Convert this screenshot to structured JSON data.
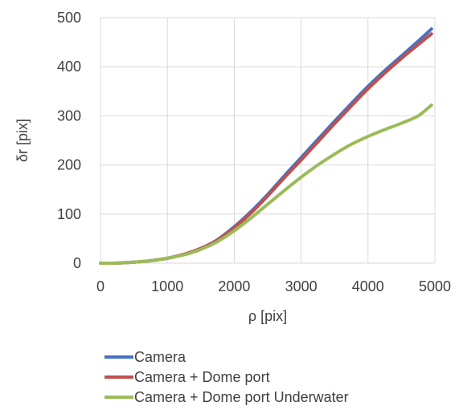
{
  "chart_data": {
    "type": "line",
    "title": "",
    "xlabel": "ρ [pix]",
    "ylabel": "δr  [pix]",
    "xlim": [
      0,
      5000
    ],
    "ylim": [
      0,
      500
    ],
    "x_ticks": [
      "0",
      "1000",
      "2000",
      "3000",
      "4000",
      "5000"
    ],
    "y_ticks": [
      "0",
      "100",
      "200",
      "300",
      "400",
      "500"
    ],
    "grid": true,
    "legend_position": "bottom",
    "series": [
      {
        "name": "Camera",
        "color": "#4472c4",
        "x": [
          0,
          250,
          500,
          750,
          1000,
          1250,
          1500,
          1750,
          2000,
          2250,
          2500,
          2750,
          3000,
          3250,
          3500,
          3750,
          4000,
          4250,
          4500,
          4750,
          4950
        ],
        "y": [
          0,
          0.3,
          2,
          5,
          10,
          18,
          30,
          48,
          74,
          105,
          140,
          178,
          215,
          252,
          289,
          325,
          360,
          392,
          422,
          452,
          477
        ]
      },
      {
        "name": "Camera + Dome port",
        "color": "#c0504d",
        "x": [
          0,
          250,
          500,
          750,
          1000,
          1250,
          1500,
          1750,
          2000,
          2250,
          2500,
          2750,
          3000,
          3250,
          3500,
          3750,
          4000,
          4250,
          4500,
          4750,
          4950
        ],
        "y": [
          0,
          0.3,
          2,
          5,
          10,
          18,
          30,
          47,
          72,
          102,
          137,
          174,
          210,
          247,
          284,
          320,
          355,
          387,
          417,
          445,
          467
        ]
      },
      {
        "name": "Camera + Dome port Underwater",
        "color": "#9bbb59",
        "x": [
          0,
          250,
          500,
          750,
          1000,
          1250,
          1500,
          1750,
          2000,
          2250,
          2500,
          2750,
          3000,
          3250,
          3500,
          3750,
          4000,
          4250,
          4500,
          4750,
          4950
        ],
        "y": [
          0,
          0.3,
          2,
          5,
          10,
          17,
          28,
          44,
          66,
          92,
          120,
          148,
          175,
          200,
          222,
          242,
          258,
          272,
          285,
          300,
          322
        ]
      }
    ]
  }
}
